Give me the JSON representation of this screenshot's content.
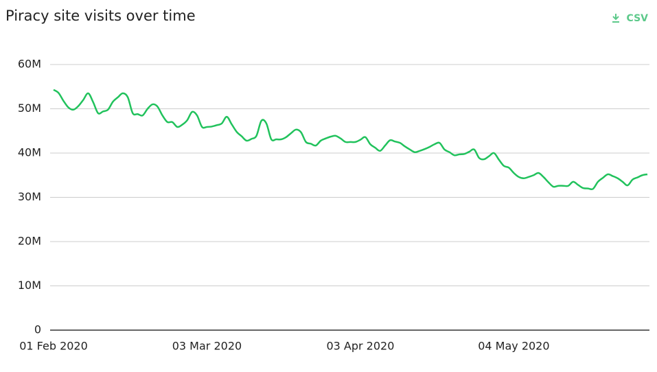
{
  "chart_data": {
    "type": "line",
    "title": "Piracy site visits over time",
    "csv_label": "CSV",
    "x": [
      "01 Feb 2020",
      "02 Feb 2020",
      "03 Feb 2020",
      "04 Feb 2020",
      "05 Feb 2020",
      "06 Feb 2020",
      "07 Feb 2020",
      "08 Feb 2020",
      "09 Feb 2020",
      "10 Feb 2020",
      "11 Feb 2020",
      "12 Feb 2020",
      "13 Feb 2020",
      "14 Feb 2020",
      "15 Feb 2020",
      "16 Feb 2020",
      "17 Feb 2020",
      "18 Feb 2020",
      "19 Feb 2020",
      "20 Feb 2020",
      "21 Feb 2020",
      "22 Feb 2020",
      "23 Feb 2020",
      "24 Feb 2020",
      "25 Feb 2020",
      "26 Feb 2020",
      "27 Feb 2020",
      "28 Feb 2020",
      "29 Feb 2020",
      "01 Mar 2020",
      "02 Mar 2020",
      "03 Mar 2020",
      "04 Mar 2020",
      "05 Mar 2020",
      "06 Mar 2020",
      "07 Mar 2020",
      "08 Mar 2020",
      "09 Mar 2020",
      "10 Mar 2020",
      "11 Mar 2020",
      "12 Mar 2020",
      "13 Mar 2020",
      "14 Mar 2020",
      "15 Mar 2020",
      "16 Mar 2020",
      "17 Mar 2020",
      "18 Mar 2020",
      "19 Mar 2020",
      "20 Mar 2020",
      "21 Mar 2020",
      "22 Mar 2020",
      "23 Mar 2020",
      "24 Mar 2020",
      "25 Mar 2020",
      "26 Mar 2020",
      "27 Mar 2020",
      "28 Mar 2020",
      "29 Mar 2020",
      "30 Mar 2020",
      "31 Mar 2020",
      "01 Apr 2020",
      "02 Apr 2020",
      "03 Apr 2020",
      "04 Apr 2020",
      "05 Apr 2020",
      "06 Apr 2020",
      "07 Apr 2020",
      "08 Apr 2020",
      "09 Apr 2020",
      "10 Apr 2020",
      "11 Apr 2020",
      "12 Apr 2020",
      "13 Apr 2020",
      "14 Apr 2020",
      "15 Apr 2020",
      "16 Apr 2020",
      "17 Apr 2020",
      "18 Apr 2020",
      "19 Apr 2020",
      "20 Apr 2020",
      "21 Apr 2020",
      "22 Apr 2020",
      "23 Apr 2020",
      "24 Apr 2020",
      "25 Apr 2020",
      "26 Apr 2020",
      "27 Apr 2020",
      "28 Apr 2020",
      "29 Apr 2020",
      "30 Apr 2020",
      "01 May 2020",
      "02 May 2020",
      "03 May 2020",
      "04 May 2020",
      "05 May 2020",
      "06 May 2020",
      "07 May 2020",
      "08 May 2020",
      "09 May 2020",
      "10 May 2020",
      "11 May 2020",
      "12 May 2020",
      "13 May 2020",
      "14 May 2020",
      "15 May 2020",
      "16 May 2020",
      "17 May 2020",
      "18 May 2020",
      "19 May 2020",
      "20 May 2020",
      "21 May 2020",
      "22 May 2020",
      "23 May 2020",
      "24 May 2020",
      "25 May 2020",
      "26 May 2020",
      "27 May 2020",
      "28 May 2020",
      "29 May 2020",
      "30 May 2020",
      "31 May 2020"
    ],
    "series": [
      {
        "name": "Visits",
        "color": "#21c25c",
        "values": [
          54300000,
          53600000,
          51800000,
          50300000,
          49800000,
          50600000,
          52000000,
          53500000,
          51500000,
          49000000,
          49400000,
          49800000,
          51600000,
          52600000,
          53500000,
          52600000,
          49000000,
          48800000,
          48500000,
          50000000,
          51000000,
          50500000,
          48500000,
          47000000,
          47000000,
          45900000,
          46400000,
          47400000,
          49300000,
          48500000,
          45900000,
          45900000,
          46000000,
          46300000,
          46700000,
          48200000,
          46500000,
          44800000,
          43800000,
          42800000,
          43200000,
          43900000,
          47300000,
          46700000,
          43100000,
          43100000,
          43100000,
          43600000,
          44500000,
          45300000,
          44700000,
          42500000,
          42100000,
          41700000,
          42800000,
          43300000,
          43700000,
          43900000,
          43300000,
          42500000,
          42500000,
          42500000,
          43000000,
          43600000,
          42000000,
          41200000,
          40500000,
          41700000,
          42900000,
          42600000,
          42300000,
          41500000,
          40800000,
          40200000,
          40500000,
          40900000,
          41400000,
          42000000,
          42300000,
          40800000,
          40200000,
          39500000,
          39700000,
          39800000,
          40300000,
          40800000,
          38900000,
          38600000,
          39300000,
          40000000,
          38500000,
          37100000,
          36700000,
          35500000,
          34600000,
          34300000,
          34600000,
          35000000,
          35500000,
          34600000,
          33400000,
          32400000,
          32600000,
          32600000,
          32600000,
          33500000,
          32800000,
          32100000,
          32000000,
          31900000,
          33500000,
          34400000,
          35200000,
          34800000,
          34300000,
          33500000,
          32700000,
          34000000,
          34500000,
          35000000,
          35200000
        ]
      }
    ],
    "xticks": [
      "01 Feb 2020",
      "03 Mar 2020",
      "03 Apr 2020",
      "04 May 2020"
    ],
    "ylim": [
      0,
      60000000
    ],
    "yticks": [
      0,
      {
        "value": 10000000,
        "label": "10M"
      },
      {
        "value": 20000000,
        "label": "20M"
      },
      {
        "value": 30000000,
        "label": "30M"
      },
      {
        "value": 40000000,
        "label": "40M"
      },
      {
        "value": 50000000,
        "label": "50M"
      },
      {
        "value": 60000000,
        "label": "60M"
      }
    ],
    "grid": true
  }
}
